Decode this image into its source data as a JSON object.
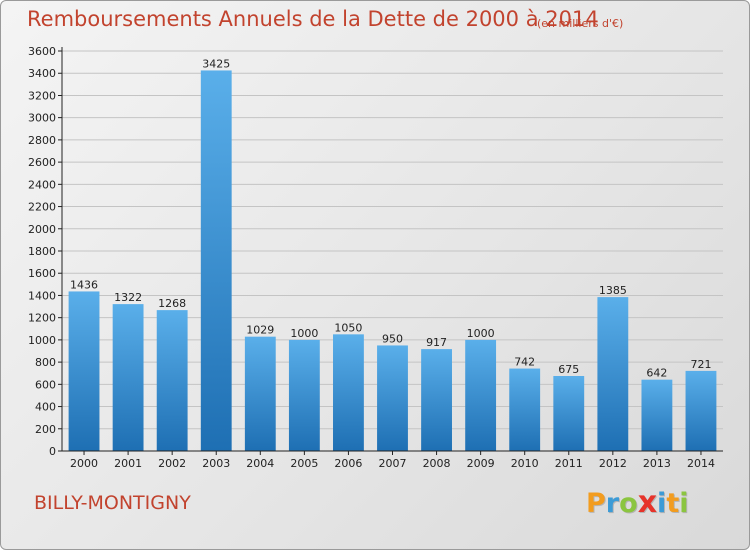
{
  "header": {
    "title": "Remboursements Annuels de la Dette de 2000 à 2014",
    "subtitle": "(en milliers d'€)"
  },
  "footer": {
    "place": "BILLY-MONTIGNY",
    "logo": {
      "letters": [
        "P",
        "r",
        "o",
        "x",
        "i",
        "t",
        "i"
      ],
      "colors": [
        "#f29c1f",
        "#3c9bd6",
        "#8bc53f",
        "#e6332a",
        "#3c9bd6",
        "#f29c1f",
        "#8bc53f"
      ]
    }
  },
  "colors": {
    "title": "#c2432e",
    "bar_top": "#5aafea",
    "bar_bottom": "#1e6fb3",
    "grid": "#c4c4c4",
    "axis": "#222222"
  },
  "chart_data": {
    "type": "bar",
    "title": "Remboursements Annuels de la Dette de 2000 à 2014",
    "subtitle": "(en milliers d'€)",
    "categories": [
      "2000",
      "2001",
      "2002",
      "2003",
      "2004",
      "2005",
      "2006",
      "2007",
      "2008",
      "2009",
      "2010",
      "2011",
      "2012",
      "2013",
      "2014"
    ],
    "values": [
      1436,
      1322,
      1268,
      3425,
      1029,
      1000,
      1050,
      950,
      917,
      1000,
      742,
      675,
      1385,
      642,
      721
    ],
    "ylim": [
      0,
      3600
    ],
    "yticks": [
      0,
      200,
      400,
      600,
      800,
      1000,
      1200,
      1400,
      1600,
      1800,
      2000,
      2200,
      2400,
      2600,
      2800,
      3000,
      3200,
      3400,
      3600
    ],
    "grid": true,
    "data_labels": true
  }
}
